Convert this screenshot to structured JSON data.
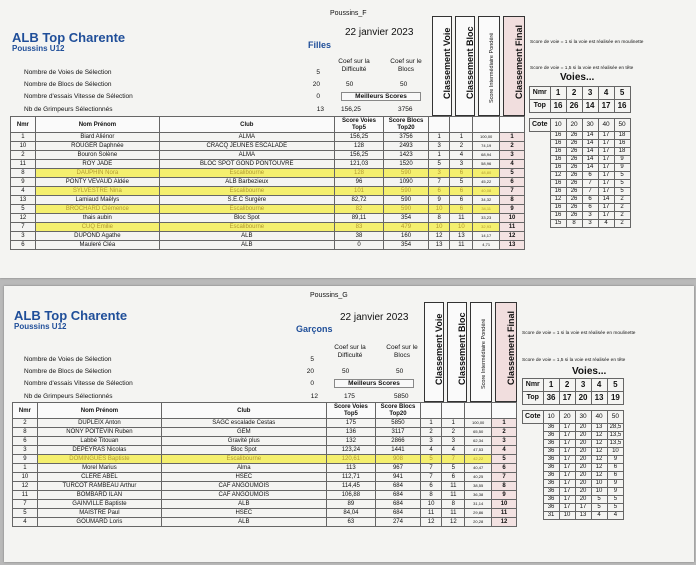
{
  "sheets": [
    {
      "id": "filles",
      "page_tag": "Poussins_F",
      "title": "ALB Top Charente",
      "subtitle": "Poussins U12",
      "date": "22 janvier 2023",
      "category": "Filles",
      "params": [
        {
          "label": "Nombre de Voies de Sélection",
          "value": "5"
        },
        {
          "label": "Nombre de Blocs de Sélection",
          "value": "20"
        },
        {
          "label": "Nombre d'essais Vitesse de Sélection",
          "value": "0"
        },
        {
          "label": "Nb de Grimpeurs Sélectionnés",
          "value": "13"
        }
      ],
      "coef_voie_label": "Coef sur la Difficulté",
      "coef_bloc_label": "Coef sur le Blocs",
      "coef_voie": "50",
      "coef_bloc": "50",
      "meilleurs_label": "Meilleurs Scores",
      "best_voie": "156,25",
      "best_bloc": "3756",
      "vertical_headers": [
        "Classement Voie",
        "Classement Bloc",
        "Score Intermédiaire Pondéré",
        "Classement Final"
      ],
      "columns": [
        "Nmr",
        "Nom Prénom",
        "Club",
        "Score Voies Top5",
        "Score Blocs Top20"
      ],
      "rows": [
        {
          "nmr": "1",
          "name": "Biard Aliénor",
          "club": "ALMA",
          "sv": "156,25",
          "sb": "3756",
          "cv": "1",
          "cb": "1",
          "sp": "100,00",
          "cf": "1",
          "hl": false
        },
        {
          "nmr": "10",
          "name": "ROUGER Daphnée",
          "club": "CRACQ JEUNES ESCALADE",
          "sv": "128",
          "sb": "2493",
          "cv": "3",
          "cb": "2",
          "sp": "74,19",
          "cf": "2",
          "hl": false
        },
        {
          "nmr": "2",
          "name": "Bouron Solène",
          "club": "ALMA",
          "sv": "156,25",
          "sb": "1423",
          "cv": "1",
          "cb": "4",
          "sp": "68,94",
          "cf": "3",
          "hl": false
        },
        {
          "nmr": "11",
          "name": "ROY JADE",
          "club": "BLOC SPOT GOND PONTOUVRE",
          "sv": "121,03",
          "sb": "1520",
          "cv": "5",
          "cb": "3",
          "sp": "58,96",
          "cf": "4",
          "hl": false
        },
        {
          "nmr": "8",
          "name": "DAUPHIN Nora",
          "club": "Escalibourne",
          "sv": "128",
          "sb": "590",
          "cv": "3",
          "cb": "6",
          "sp": "48,80",
          "cf": "5",
          "hl": true
        },
        {
          "nmr": "9",
          "name": "PONTY VEVAUD Aldée",
          "club": "ALB Barbezieux",
          "sv": "96",
          "sb": "1090",
          "cv": "7",
          "cb": "5",
          "sp": "45,22",
          "cf": "6",
          "hl": false
        },
        {
          "nmr": "4",
          "name": "SYLVESTRE Nina",
          "club": "Escalibourne",
          "sv": "101",
          "sb": "590",
          "cv": "6",
          "cb": "6",
          "sp": "40,08",
          "cf": "7",
          "hl": true
        },
        {
          "nmr": "13",
          "name": "Lamiaud Maëlys",
          "club": "S.E.C Surgère",
          "sv": "82,72",
          "sb": "590",
          "cv": "9",
          "cb": "6",
          "sp": "34,32",
          "cf": "8",
          "hl": false
        },
        {
          "nmr": "5",
          "name": "BROCHARD Clémence",
          "club": "Escalibourne",
          "sv": "82",
          "sb": "590",
          "cv": "10",
          "cb": "6",
          "sp": "34,11",
          "cf": "9",
          "hl": true
        },
        {
          "nmr": "12",
          "name": "thais aubin",
          "club": "Bloc Spot",
          "sv": "89,11",
          "sb": "354",
          "cv": "8",
          "cb": "11",
          "sp": "33,23",
          "cf": "10",
          "hl": false
        },
        {
          "nmr": "7",
          "name": "CUQ Emilie",
          "club": "Escalibourne",
          "sv": "83",
          "sb": "479",
          "cv": "10",
          "cb": "10",
          "sp": "32,93",
          "cf": "11",
          "hl": true
        },
        {
          "nmr": "3",
          "name": "DUPOND Agathe",
          "club": "ALB",
          "sv": "38",
          "sb": "160",
          "cv": "12",
          "cb": "13",
          "sp": "14,17",
          "cf": "12",
          "hl": false
        },
        {
          "nmr": "6",
          "name": "Mauleré Cléa",
          "club": "ALB",
          "sv": "0",
          "sb": "354",
          "cv": "13",
          "cb": "11",
          "sp": "4,71",
          "cf": "13",
          "hl": false
        }
      ],
      "note_1": "Score de voie = 1 si la voie est réalisée en moulinette",
      "note_2": "Score de voie = 1,5 si la voie est réalisée en tête",
      "voies_label": "Voies...",
      "rec_nmr_label": "Nmr",
      "rec_top_label": "Top",
      "rec_cote_label": "Cote",
      "rec_nmr": [
        "1",
        "2",
        "3",
        "4",
        "5"
      ],
      "rec_top": [
        "16",
        "26",
        "14",
        "17",
        "16"
      ],
      "rec_cote": [
        "10",
        "20",
        "30",
        "40",
        "50"
      ],
      "rec_rows": [
        [
          "16",
          "26",
          "14",
          "17",
          "18"
        ],
        [
          "16",
          "26",
          "14",
          "17",
          "16"
        ],
        [
          "16",
          "26",
          "14",
          "17",
          "18"
        ],
        [
          "16",
          "26",
          "14",
          "17",
          "9"
        ],
        [
          "16",
          "26",
          "14",
          "17",
          "9"
        ],
        [
          "12",
          "26",
          "6",
          "17",
          "5"
        ],
        [
          "16",
          "26",
          "7",
          "17",
          "5"
        ],
        [
          "16",
          "26",
          "7",
          "17",
          "5"
        ],
        [
          "12",
          "26",
          "6",
          "14",
          "2"
        ],
        [
          "16",
          "26",
          "6",
          "17",
          "2"
        ],
        [
          "16",
          "26",
          "3",
          "17",
          "2"
        ],
        [
          "15",
          "8",
          "3",
          "4",
          "2"
        ]
      ]
    },
    {
      "id": "garcons",
      "page_tag": "Poussins_G",
      "title": "ALB Top Charente",
      "subtitle": "Poussins U12",
      "date": "22 janvier 2023",
      "category": "Garçons",
      "params": [
        {
          "label": "Nombre de Voies de Sélection",
          "value": "5"
        },
        {
          "label": "Nombre de Blocs de Sélection",
          "value": "20"
        },
        {
          "label": "Nombre d'essais Vitesse de Sélection",
          "value": "0"
        },
        {
          "label": "Nb de Grimpeurs Sélectionnés",
          "value": "12"
        }
      ],
      "coef_voie_label": "Coef sur la Difficulté",
      "coef_bloc_label": "Coef sur le Blocs",
      "coef_voie": "50",
      "coef_bloc": "50",
      "meilleurs_label": "Meilleurs Scores",
      "best_voie": "175",
      "best_bloc": "5850",
      "vertical_headers": [
        "Classement Voie",
        "Classement Bloc",
        "Score Intermédiaire Pondéré",
        "Classement Final"
      ],
      "columns": [
        "Nmr",
        "Nom Prénom",
        "Club",
        "Score Voies Top5",
        "Score Blocs Top20"
      ],
      "rows": [
        {
          "nmr": "2",
          "name": "DUPLEIX Anton",
          "club": "SAGC escalade Cestas",
          "sv": "175",
          "sb": "5850",
          "cv": "1",
          "cb": "1",
          "sp": "100,00",
          "cf": "1",
          "hl": false
        },
        {
          "nmr": "8",
          "name": "NONY POITEVIN Ruben",
          "club": "GEM",
          "sv": "136",
          "sb": "3117",
          "cv": "2",
          "cb": "2",
          "sp": "65,50",
          "cf": "2",
          "hl": false
        },
        {
          "nmr": "6",
          "name": "Labbé Titouan",
          "club": "Gravité plus",
          "sv": "132",
          "sb": "2866",
          "cv": "3",
          "cb": "3",
          "sp": "62,34",
          "cf": "3",
          "hl": false
        },
        {
          "nmr": "3",
          "name": "DEPEYRAS Nicolas",
          "club": "Bloc Spot",
          "sv": "123,24",
          "sb": "1441",
          "cv": "4",
          "cb": "4",
          "sp": "47,53",
          "cf": "4",
          "hl": false
        },
        {
          "nmr": "9",
          "name": "DOMINGUES Baptiste",
          "club": "Escalibourne",
          "sv": "120,61",
          "sb": "908",
          "cv": "5",
          "cb": "7",
          "sp": "42,22",
          "cf": "5",
          "hl": true
        },
        {
          "nmr": "1",
          "name": "Morel Marius",
          "club": "Alma",
          "sv": "113",
          "sb": "967",
          "cv": "7",
          "cb": "5",
          "sp": "40,47",
          "cf": "6",
          "hl": false
        },
        {
          "nmr": "10",
          "name": "CLERE ABEL",
          "club": "HSEC",
          "sv": "112,71",
          "sb": "941",
          "cv": "7",
          "cb": "6",
          "sp": "40,25",
          "cf": "7",
          "hl": false
        },
        {
          "nmr": "12",
          "name": "TURCOT RAMBEAU Arthur",
          "club": "CAF ANGOUMOIS",
          "sv": "114,45",
          "sb": "684",
          "cv": "6",
          "cb": "11",
          "sp": "38,55",
          "cf": "8",
          "hl": false
        },
        {
          "nmr": "11",
          "name": "BOMBARD ILAN",
          "club": "CAF ANGOUMOIS",
          "sv": "106,88",
          "sb": "684",
          "cv": "8",
          "cb": "11",
          "sp": "36,38",
          "cf": "9",
          "hl": false
        },
        {
          "nmr": "7",
          "name": "GAINVILLE Baptiste",
          "club": "ALB",
          "sv": "89",
          "sb": "684",
          "cv": "10",
          "cb": "8",
          "sp": "31,14",
          "cf": "10",
          "hl": false
        },
        {
          "nmr": "5",
          "name": "MAISTRE Paul",
          "club": "HSEC",
          "sv": "84,04",
          "sb": "684",
          "cv": "11",
          "cb": "11",
          "sp": "29,86",
          "cf": "11",
          "hl": false
        },
        {
          "nmr": "4",
          "name": "GOUMARD Loris",
          "club": "ALB",
          "sv": "63",
          "sb": "274",
          "cv": "12",
          "cb": "12",
          "sp": "20,28",
          "cf": "12",
          "hl": false
        }
      ],
      "note_1": "Score de voie = 1 si la voie est réalisée en moulinette",
      "note_2": "Score de voie = 1,5 si la voie est réalisée en tête",
      "voies_label": "Voies...",
      "rec_nmr_label": "Nmr",
      "rec_top_label": "Top",
      "rec_cote_label": "Cote",
      "rec_nmr": [
        "1",
        "2",
        "3",
        "4",
        "5"
      ],
      "rec_top": [
        "36",
        "17",
        "20",
        "13",
        "19"
      ],
      "rec_cote": [
        "10",
        "20",
        "30",
        "40",
        "50"
      ],
      "rec_rows": [
        [
          "36",
          "17",
          "20",
          "13",
          "28,5"
        ],
        [
          "36",
          "17",
          "20",
          "12",
          "13,5"
        ],
        [
          "36",
          "17",
          "20",
          "12",
          "13,5"
        ],
        [
          "36",
          "17",
          "20",
          "12",
          "10"
        ],
        [
          "36",
          "17",
          "20",
          "12",
          "9"
        ],
        [
          "36",
          "17",
          "20",
          "12",
          "6"
        ],
        [
          "36",
          "17",
          "20",
          "12",
          "6"
        ],
        [
          "36",
          "17",
          "20",
          "10",
          "9"
        ],
        [
          "36",
          "17",
          "20",
          "10",
          "9"
        ],
        [
          "36",
          "17",
          "20",
          "5",
          "5"
        ],
        [
          "36",
          "17",
          "17",
          "5",
          "5"
        ],
        [
          "31",
          "10",
          "13",
          "4",
          "4"
        ]
      ]
    }
  ]
}
